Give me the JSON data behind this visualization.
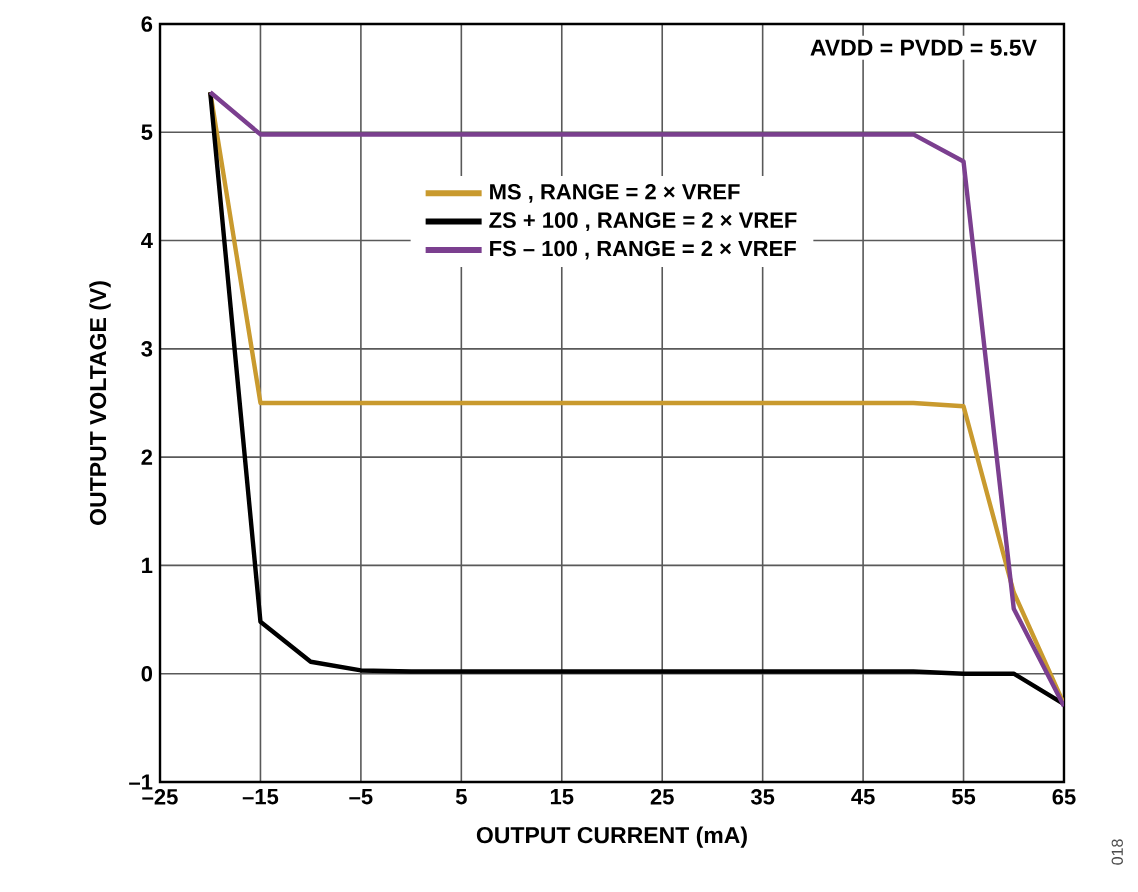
{
  "chart_data": {
    "type": "line",
    "xlabel": "OUTPUT CURRENT  (mA)",
    "ylabel": "OUTPUT VOLTAGE (V)",
    "annotations": [
      "AVDD = PVDD = 5.5V",
      "018"
    ],
    "x": [
      -20,
      -15,
      -10,
      -5,
      0,
      5,
      10,
      15,
      20,
      25,
      30,
      35,
      40,
      45,
      50,
      55,
      60,
      65
    ],
    "series": [
      {
        "name": "MS , RANGE =  2 × VREF",
        "color": "#c99a2e",
        "values": [
          5.37,
          2.5,
          2.5,
          2.5,
          2.5,
          2.5,
          2.5,
          2.5,
          2.5,
          2.5,
          2.5,
          2.5,
          2.5,
          2.5,
          2.5,
          2.47,
          0.75,
          -0.28
        ]
      },
      {
        "name": "ZS + 100 , RANGE = 2 × VREF",
        "color": "#000000",
        "values": [
          5.37,
          0.48,
          0.11,
          0.03,
          0.02,
          0.02,
          0.02,
          0.02,
          0.02,
          0.02,
          0.02,
          0.02,
          0.02,
          0.02,
          0.02,
          0.0,
          0.0,
          -0.28
        ]
      },
      {
        "name": "FS – 100 , RANGE = 2 × VREF",
        "color": "#7b3f8f",
        "values": [
          5.37,
          4.98,
          4.98,
          4.98,
          4.98,
          4.98,
          4.98,
          4.98,
          4.98,
          4.98,
          4.98,
          4.98,
          4.98,
          4.98,
          4.98,
          4.73,
          0.6,
          -0.3
        ]
      }
    ],
    "xlim": [
      -25,
      65
    ],
    "xticks": [
      {
        "value": -25,
        "label": "–25"
      },
      {
        "value": -15,
        "label": "–15"
      },
      {
        "value": -5,
        "label": "–5"
      },
      5,
      15,
      25,
      35,
      45,
      55,
      65
    ],
    "ylim": [
      -1,
      6
    ],
    "yticks": [
      {
        "value": -1,
        "label": "–1"
      },
      0,
      1,
      2,
      3,
      4,
      5,
      6
    ],
    "grid": true,
    "legend": "top",
    "marker": "none",
    "line_style": "solid"
  }
}
